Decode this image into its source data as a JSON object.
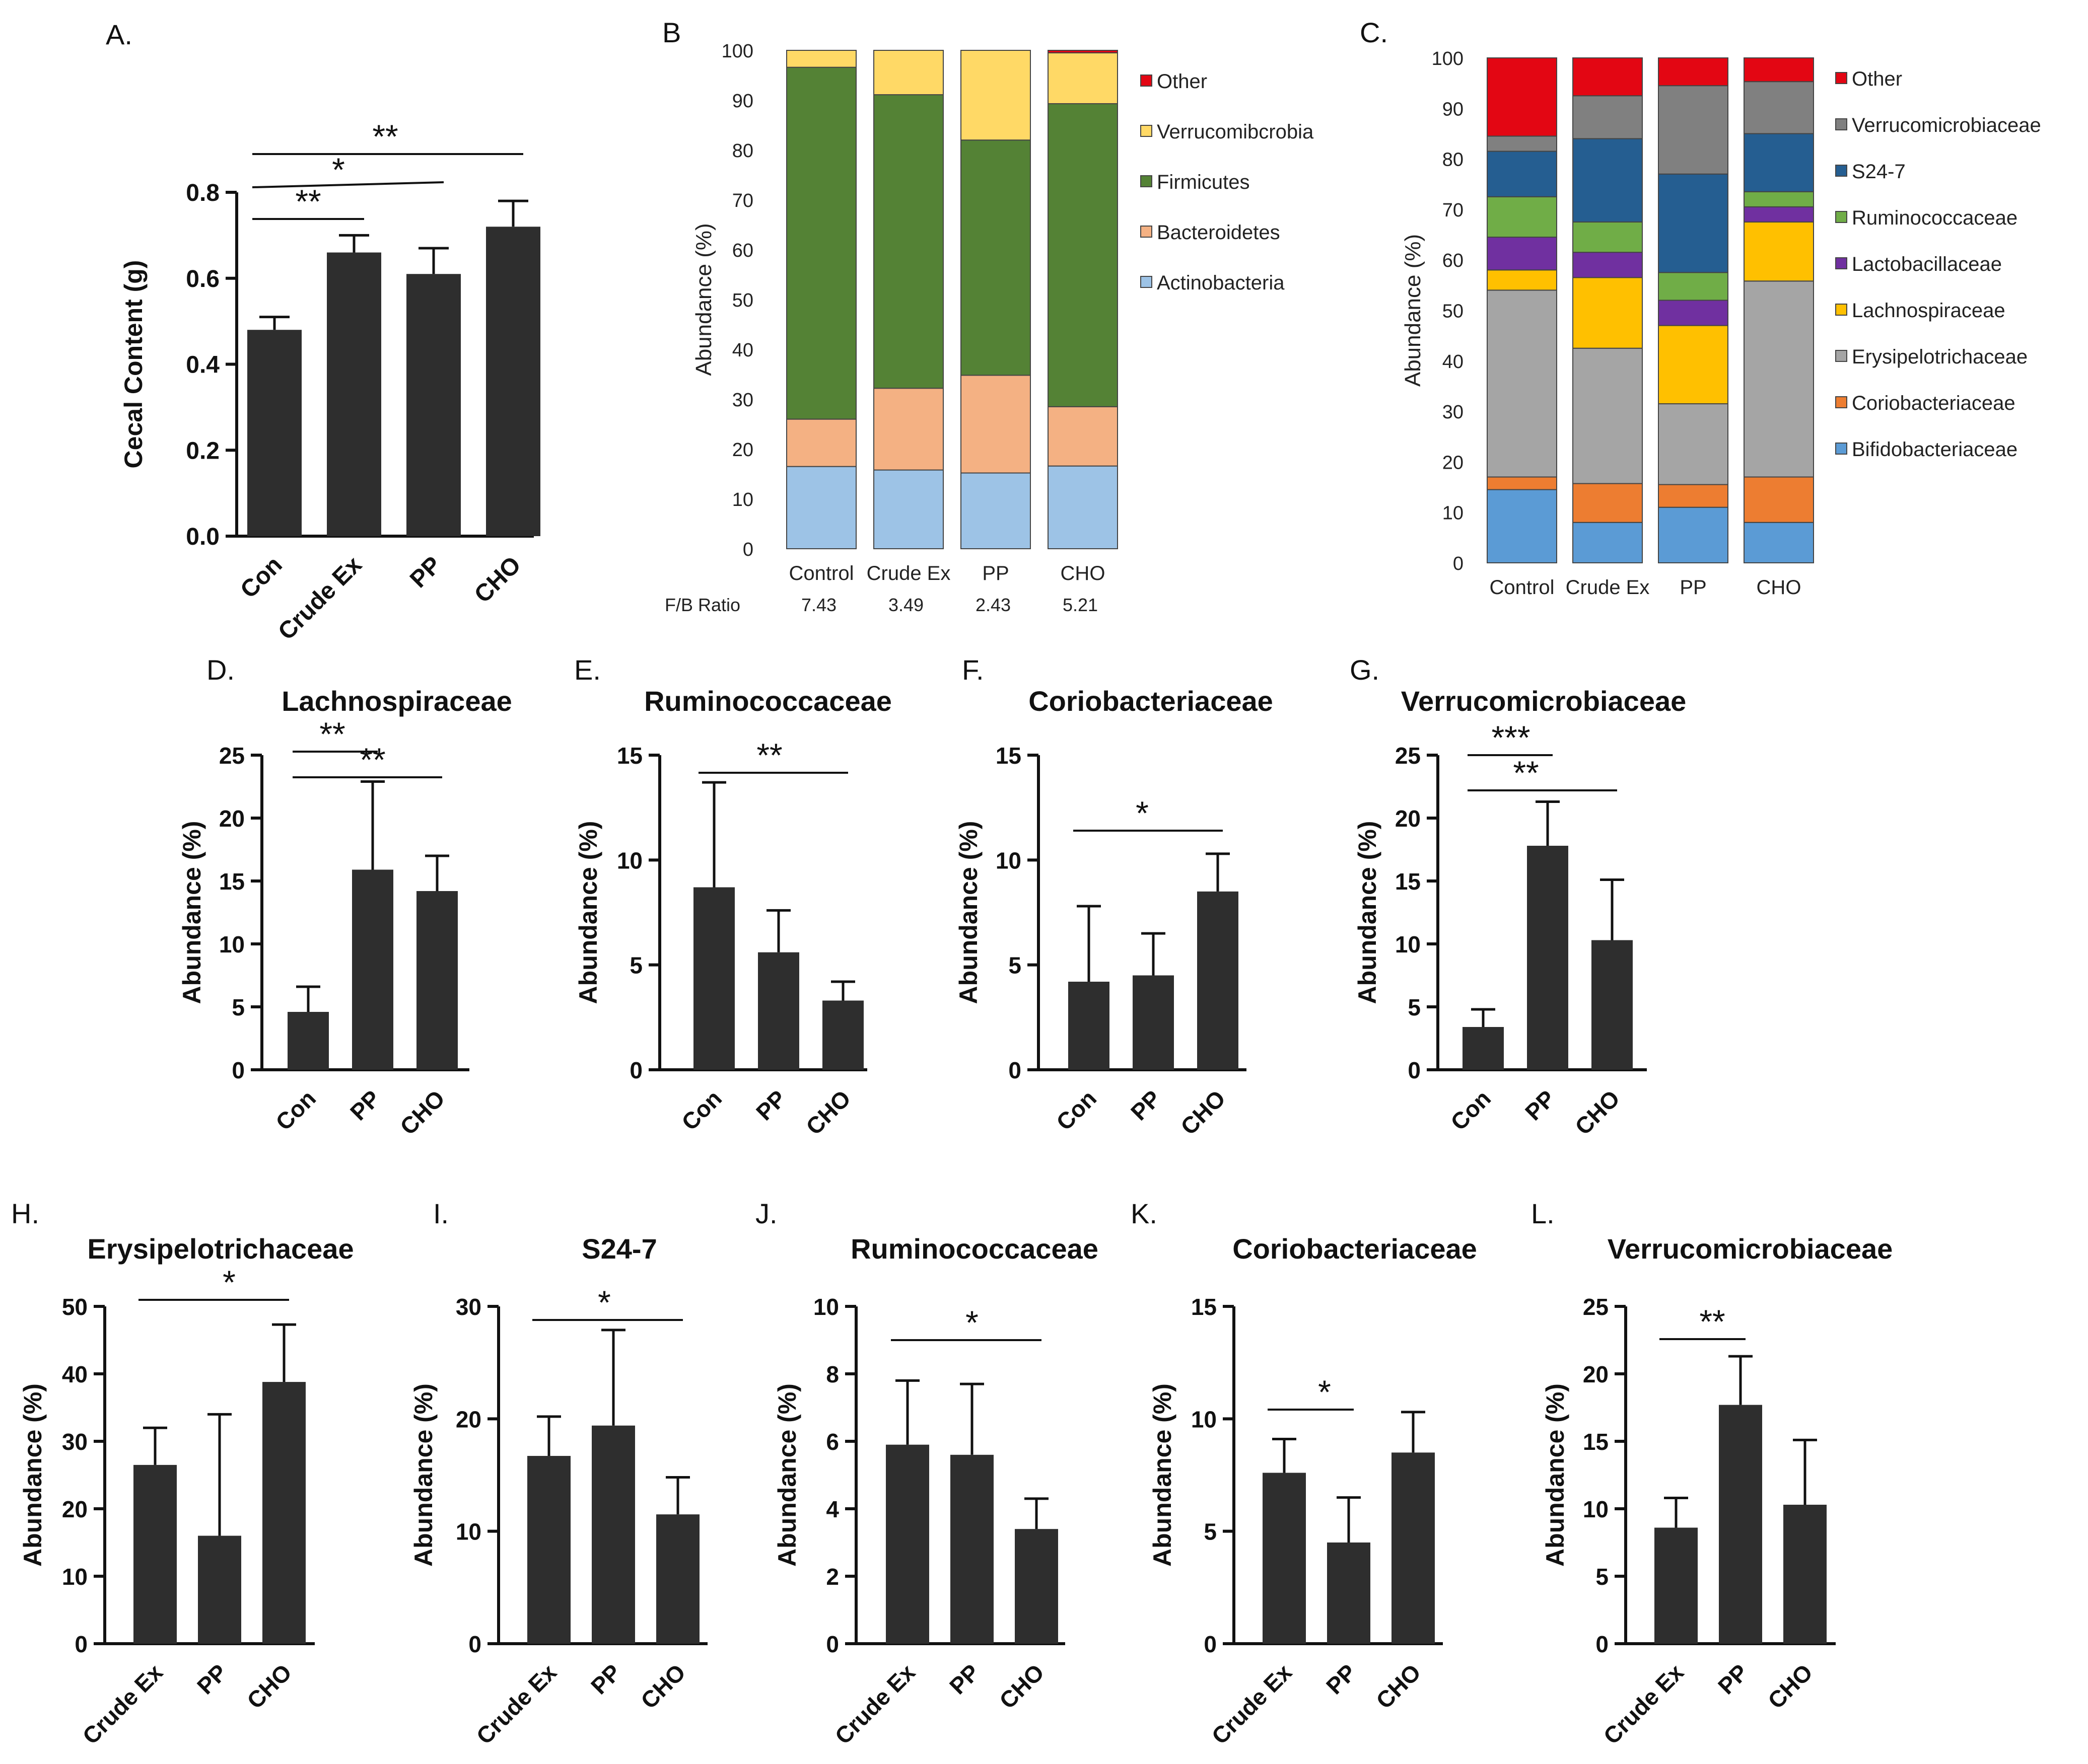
{
  "chart_data": [
    {
      "panel": "A.",
      "type": "bar",
      "title": "",
      "categories": [
        "Con",
        "Crude Ex",
        "PP",
        "CHO"
      ],
      "values": [
        0.48,
        0.66,
        0.61,
        0.72
      ],
      "errors": [
        0.03,
        0.04,
        0.06,
        0.06
      ],
      "ylabel": "Cecal Content (g)",
      "ylim": [
        0,
        0.8
      ],
      "yticks": [
        "0.0",
        "0.2",
        "0.4",
        "0.6",
        "0.8"
      ],
      "significance": [
        {
          "from": 0,
          "to": 1,
          "label": "**"
        },
        {
          "from": 0,
          "to": 2,
          "label": "*"
        },
        {
          "from": 0,
          "to": 3,
          "label": "**"
        }
      ]
    },
    {
      "panel": "B",
      "type": "stacked-bar",
      "categories": [
        "Control",
        "Crude Ex",
        "PP",
        "CHO"
      ],
      "ylabel": "Abundance (%)",
      "ylim": [
        0,
        100
      ],
      "yticks": [
        "0",
        "10",
        "20",
        "30",
        "40",
        "50",
        "60",
        "70",
        "80",
        "90",
        "100"
      ],
      "series": [
        {
          "name": "Actinobacteria",
          "color": "#9dc3e6",
          "values": [
            16.5,
            15.8,
            15.2,
            16.6
          ]
        },
        {
          "name": "Bacteroidetes",
          "color": "#f4b183",
          "values": [
            9.5,
            16.4,
            19.6,
            11.9
          ]
        },
        {
          "name": "Firmicutes",
          "color": "#548235",
          "values": [
            70.6,
            58.9,
            47.2,
            60.8
          ]
        },
        {
          "name": "Verrucomicrobia",
          "color": "#ffd966",
          "values": [
            3.4,
            8.9,
            18.0,
            10.2
          ]
        },
        {
          "name": "Other",
          "color": "#e30613",
          "values": [
            0,
            0,
            0,
            0.5
          ]
        }
      ],
      "legend_order": [
        "Other",
        "Verrucomibcrobia",
        "Firmicutes",
        "Bacteroidetes",
        "Actinobacteria"
      ],
      "fb_label": "F/B Ratio",
      "fb_ratio": [
        "7.43",
        "3.49",
        "2.43",
        "5.21"
      ]
    },
    {
      "panel": "C.",
      "type": "stacked-bar",
      "categories": [
        "Control",
        "Crude Ex",
        "PP",
        "CHO"
      ],
      "ylabel": "Abundance  (%)",
      "ylim": [
        0,
        100
      ],
      "yticks": [
        "0",
        "10",
        "20",
        "30",
        "40",
        "50",
        "60",
        "70",
        "80",
        "90",
        "100"
      ],
      "series": [
        {
          "name": "Bifidobacteriaceae",
          "color": "#5b9bd5",
          "values": [
            14.5,
            8.0,
            11.0,
            8.0
          ]
        },
        {
          "name": "Coriobacteriaceae",
          "color": "#ed7d31",
          "values": [
            2.5,
            7.7,
            4.5,
            9.0
          ]
        },
        {
          "name": "Erysipelotrichaceae",
          "color": "#a5a5a5",
          "values": [
            37.0,
            26.8,
            16.0,
            38.8
          ]
        },
        {
          "name": "Lachnospiraceae",
          "color": "#ffc000",
          "values": [
            4.0,
            14.0,
            15.5,
            11.7
          ]
        },
        {
          "name": "Lactobacillaceae",
          "color": "#7030a0",
          "values": [
            6.5,
            5.0,
            5.0,
            3.0
          ]
        },
        {
          "name": "Ruminococcaceae",
          "color": "#70ad47",
          "values": [
            8.0,
            6.0,
            5.5,
            3.0
          ]
        },
        {
          "name": "S24-7",
          "color": "#255e91",
          "values": [
            9.0,
            16.5,
            19.5,
            11.5
          ]
        },
        {
          "name": "Verrucomicrobiaceae",
          "color": "#808080",
          "values": [
            3.0,
            8.5,
            17.5,
            10.3
          ]
        },
        {
          "name": "Other",
          "color": "#e30613",
          "values": [
            15.5,
            7.5,
            5.5,
            4.7
          ]
        }
      ]
    },
    {
      "panel": "D.",
      "type": "bar",
      "title": "Lachnospiraceae",
      "categories": [
        "Con",
        "PP",
        "CHO"
      ],
      "values": [
        4.6,
        15.9,
        14.2
      ],
      "errors": [
        2.0,
        7.0,
        2.8
      ],
      "ylabel": "Abundance (%)",
      "ylim": [
        0,
        25
      ],
      "yticks": [
        "0",
        "5",
        "10",
        "15",
        "20",
        "25"
      ],
      "significance": [
        {
          "from": 0,
          "to": 1,
          "label": "**"
        },
        {
          "from": 0,
          "to": 2,
          "label": "**"
        }
      ]
    },
    {
      "panel": "E.",
      "type": "bar",
      "title": "Ruminococcaceae",
      "categories": [
        "Con",
        "PP",
        "CHO"
      ],
      "values": [
        8.7,
        5.6,
        3.3
      ],
      "errors": [
        5.0,
        2.0,
        0.9
      ],
      "ylabel": "Abundance (%)",
      "ylim": [
        0,
        15
      ],
      "yticks": [
        "0",
        "5",
        "10",
        "15"
      ],
      "significance": [
        {
          "from": 0,
          "to": 2,
          "label": "**"
        }
      ]
    },
    {
      "panel": "F.",
      "type": "bar",
      "title": "Coriobacteriaceae",
      "categories": [
        "Con",
        "PP",
        "CHO"
      ],
      "values": [
        4.2,
        4.5,
        8.5
      ],
      "errors": [
        3.6,
        2.0,
        1.8
      ],
      "ylabel": "Abundance (%)",
      "ylim": [
        0,
        15
      ],
      "yticks": [
        "0",
        "5",
        "10",
        "15"
      ],
      "significance": [
        {
          "from": 0,
          "to": 2,
          "label": "*"
        }
      ]
    },
    {
      "panel": "G.",
      "type": "bar",
      "title": "Verrucomicrobiaceae",
      "categories": [
        "Con",
        "PP",
        "CHO"
      ],
      "values": [
        3.4,
        17.8,
        10.3
      ],
      "errors": [
        1.4,
        3.5,
        4.8
      ],
      "ylabel": "Abundance (%)",
      "ylim": [
        0,
        25
      ],
      "yticks": [
        "0",
        "5",
        "10",
        "15",
        "20",
        "25"
      ],
      "significance": [
        {
          "from": 0,
          "to": 1,
          "label": "***"
        },
        {
          "from": 0,
          "to": 2,
          "label": "**"
        }
      ]
    },
    {
      "panel": "H.",
      "type": "bar",
      "title": "Erysipelotrichaceae",
      "categories": [
        "Crude Ex",
        "PP",
        "CHO"
      ],
      "values": [
        26.5,
        16.0,
        38.8
      ],
      "errors": [
        5.5,
        18.0,
        8.5
      ],
      "ylabel": "Abundance (%)",
      "ylim": [
        0,
        50
      ],
      "yticks": [
        "0",
        "10",
        "20",
        "30",
        "40",
        "50"
      ],
      "significance": [
        {
          "from": 0,
          "to": 2,
          "label": "*"
        }
      ]
    },
    {
      "panel": "I.",
      "type": "bar",
      "title": "S24-7",
      "categories": [
        "Crude Ex",
        "PP",
        "CHO"
      ],
      "values": [
        16.7,
        19.4,
        11.5
      ],
      "errors": [
        3.5,
        8.5,
        3.3
      ],
      "ylabel": "Abundance (%)",
      "ylim": [
        0,
        30
      ],
      "yticks": [
        "0",
        "10",
        "20",
        "30"
      ],
      "significance": [
        {
          "from": 0,
          "to": 2,
          "label": "*"
        }
      ]
    },
    {
      "panel": "J.",
      "type": "bar",
      "title": "Ruminococcaceae",
      "categories": [
        "Crude Ex",
        "PP",
        "CHO"
      ],
      "values": [
        5.9,
        5.6,
        3.4
      ],
      "errors": [
        1.9,
        2.1,
        0.9
      ],
      "ylabel": "Abundance (%)",
      "ylim": [
        0,
        10
      ],
      "yticks": [
        "0",
        "2",
        "4",
        "6",
        "8",
        "10"
      ],
      "significance": [
        {
          "from": 0,
          "to": 2,
          "label": "*"
        }
      ]
    },
    {
      "panel": "K.",
      "type": "bar",
      "title": "Coriobacteriaceae",
      "categories": [
        "Crude Ex",
        "PP",
        "CHO"
      ],
      "values": [
        7.6,
        4.5,
        8.5
      ],
      "errors": [
        1.5,
        2.0,
        1.8
      ],
      "ylabel": "Abundance (%)",
      "ylim": [
        0,
        15
      ],
      "yticks": [
        "0",
        "5",
        "10",
        "15"
      ],
      "significance": [
        {
          "from": 0,
          "to": 1,
          "label": "*"
        }
      ]
    },
    {
      "panel": "L.",
      "type": "bar",
      "title": "Verrucomicrobiaceae",
      "categories": [
        "Crude Ex",
        "PP",
        "CHO"
      ],
      "values": [
        8.6,
        17.7,
        10.3
      ],
      "errors": [
        2.2,
        3.6,
        4.8
      ],
      "ylabel": "Abundance (%)",
      "ylim": [
        0,
        25
      ],
      "yticks": [
        "0",
        "5",
        "10",
        "15",
        "20",
        "25"
      ],
      "significance": [
        {
          "from": 0,
          "to": 1,
          "label": "**"
        }
      ]
    }
  ]
}
